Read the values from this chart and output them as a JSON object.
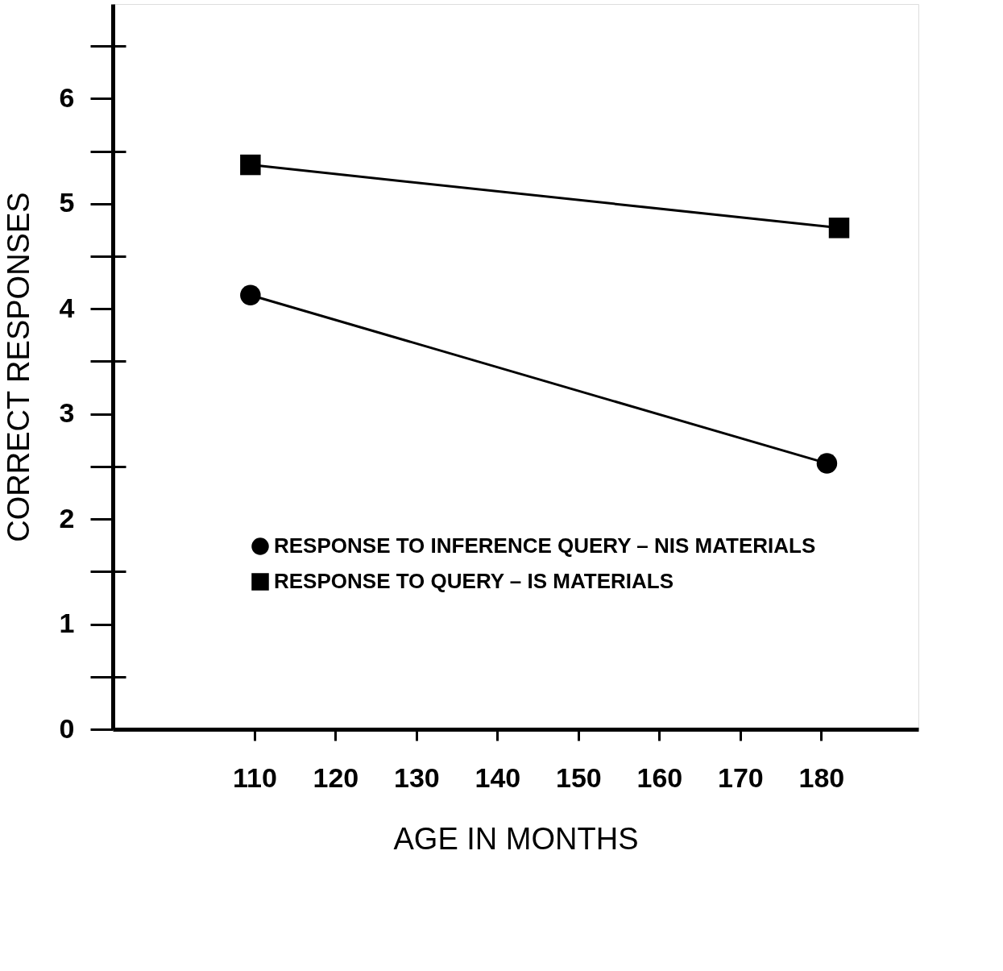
{
  "chart_data": {
    "type": "line",
    "xlabel": "AGE IN MONTHS",
    "ylabel": "CORRECT RESPONSES",
    "xlim": [
      92.5,
      192
    ],
    "ylim": [
      0,
      6.9
    ],
    "xticks": [
      110,
      120,
      130,
      140,
      150,
      160,
      170,
      180
    ],
    "yticks": [
      0,
      {
        "value": 0.5,
        "label": null
      },
      1,
      {
        "value": 1.5,
        "label": null
      },
      2,
      {
        "value": 2.5,
        "label": null
      },
      3,
      {
        "value": 3.5,
        "label": null
      },
      4,
      {
        "value": 4.5,
        "label": null
      },
      5,
      {
        "value": 5.5,
        "label": null
      },
      6,
      {
        "value": 6.5,
        "label": null
      }
    ],
    "grid": false,
    "legend": "bottom left",
    "line_style": "solid",
    "series": [
      {
        "name": "RESPONSE TO INFERENCE QUERY – NIS MATERIALS",
        "color": "#000000",
        "marker": "circle",
        "x": [
          109.5,
          180.7
        ],
        "values": [
          4.13,
          2.53
        ]
      },
      {
        "name": "RESPONSE TO QUERY – IS MATERIALS",
        "color": "#000000",
        "marker": "square",
        "x": [
          109.5,
          182.2
        ],
        "values": [
          5.37,
          4.77
        ]
      }
    ]
  }
}
